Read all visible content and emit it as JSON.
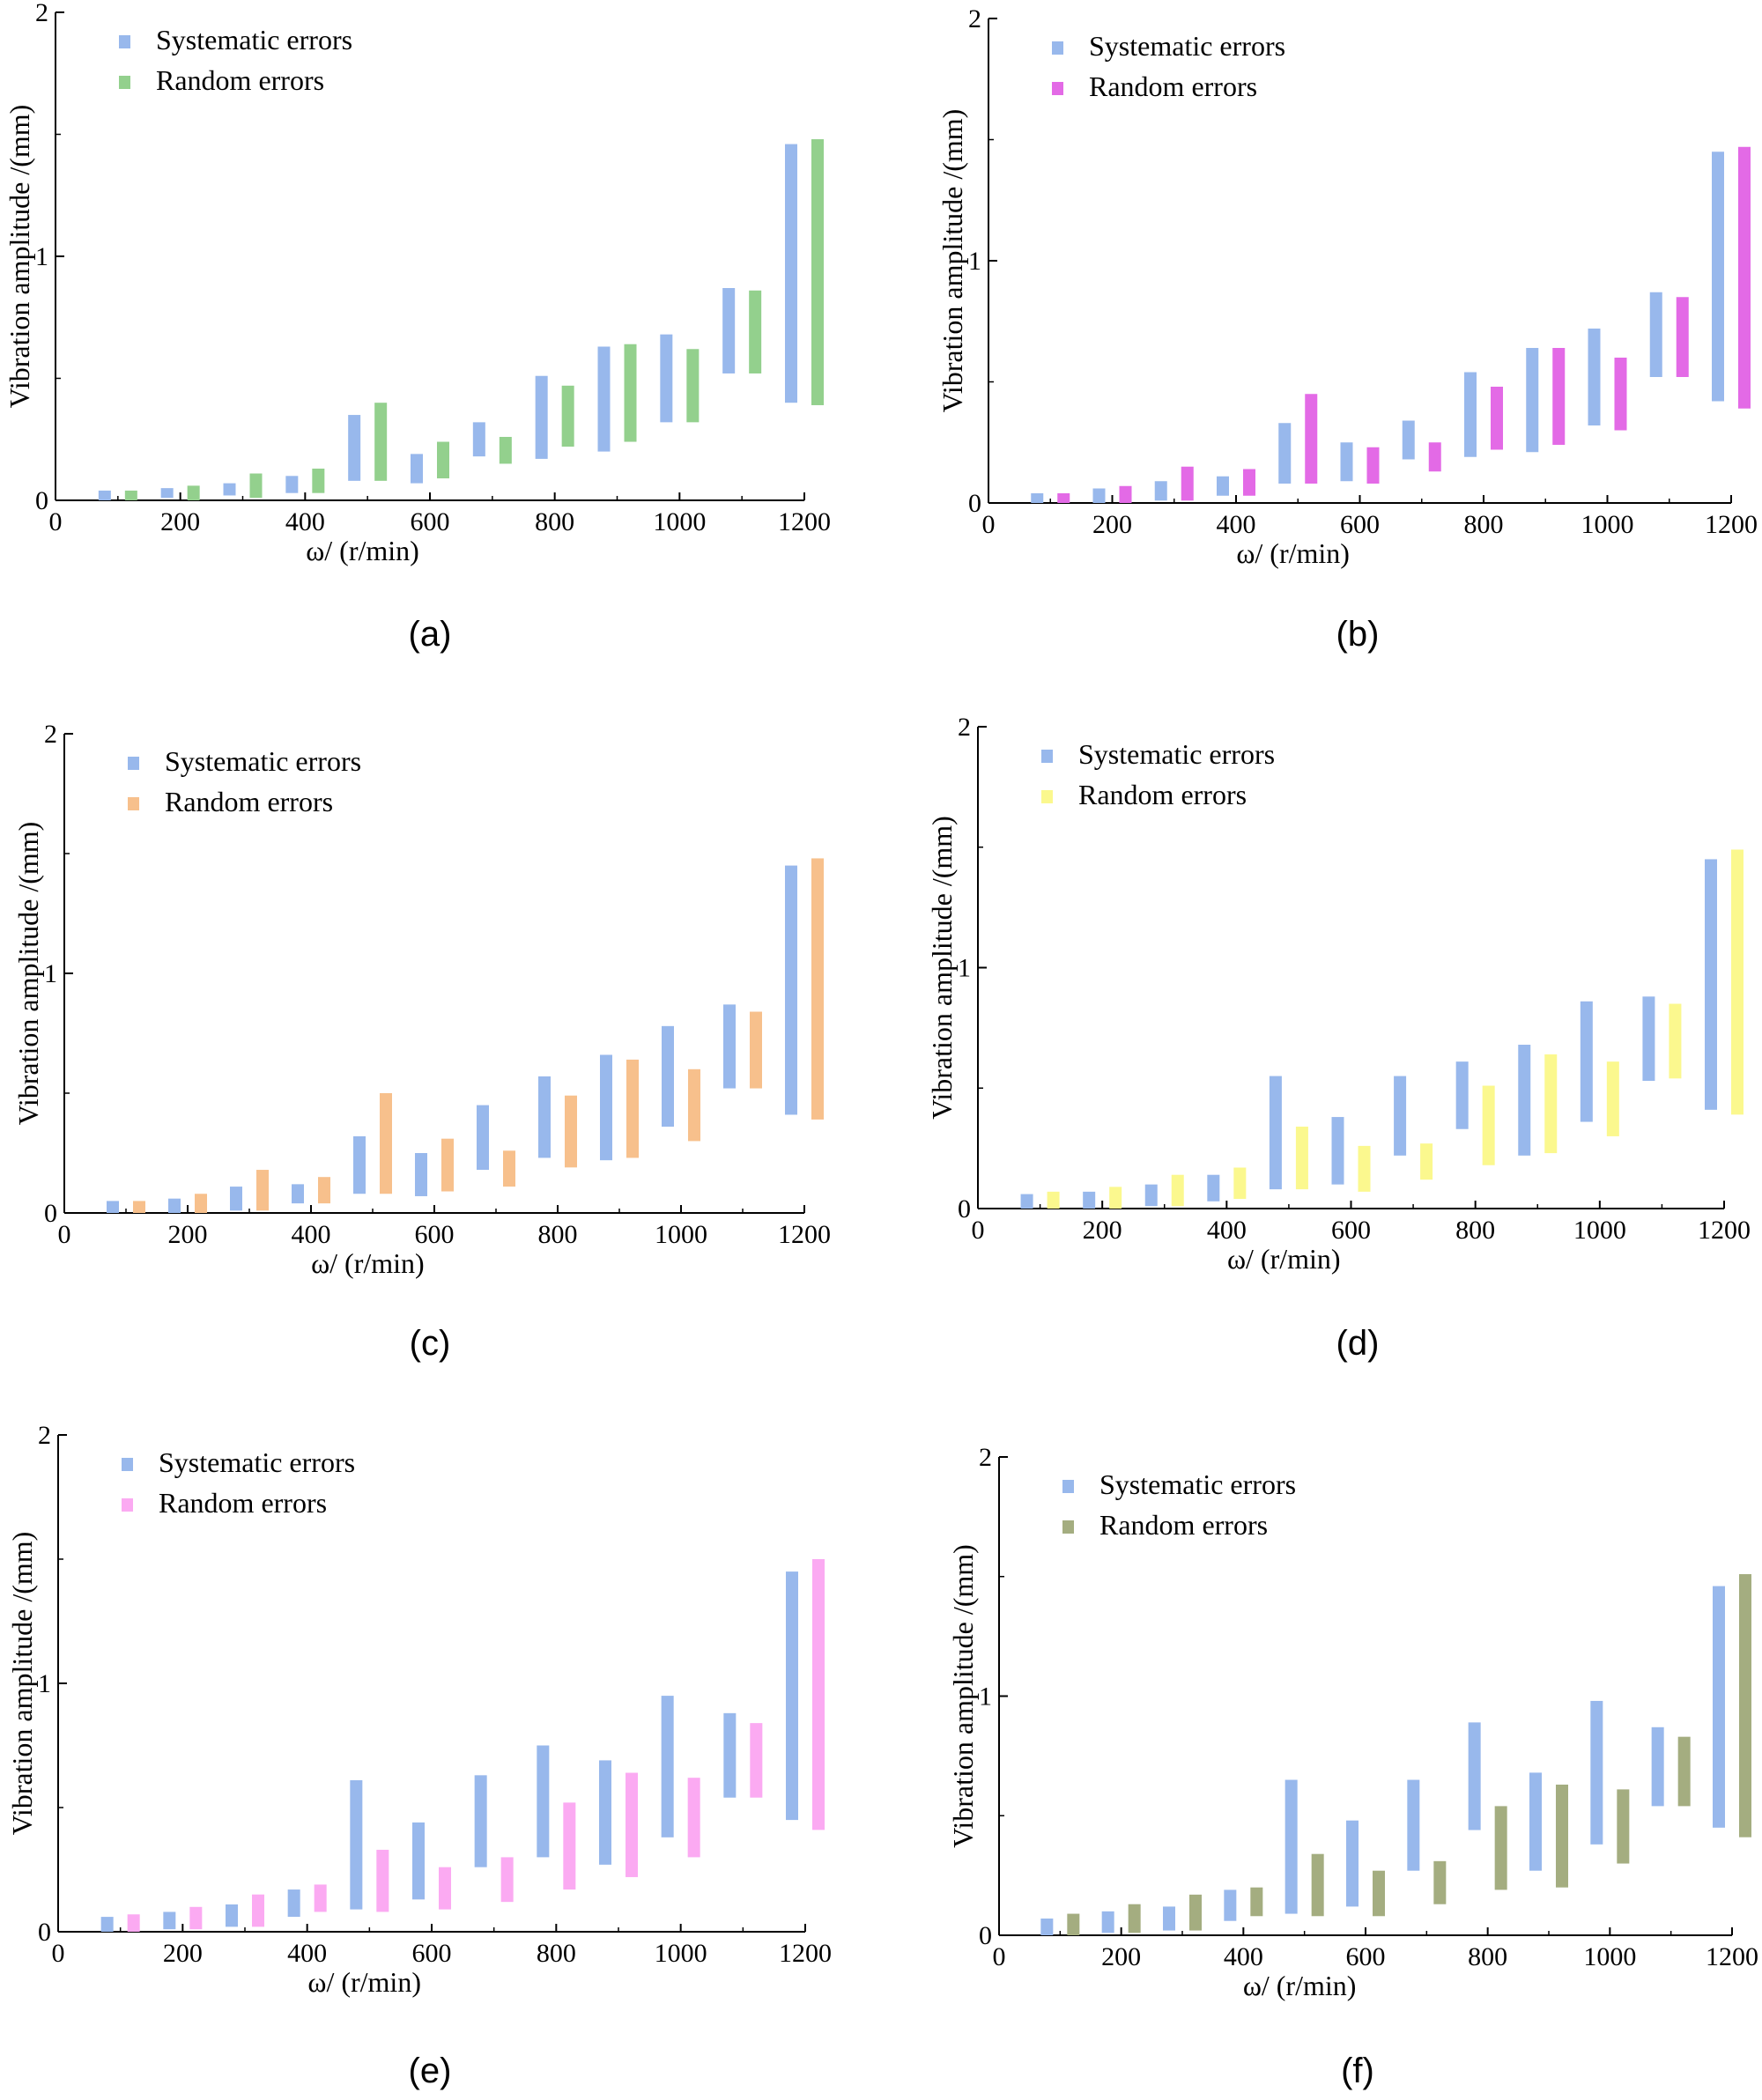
{
  "figure": {
    "colors": {
      "systematic": "#98b8ec",
      "axis": "#000000"
    }
  },
  "chart_data": [
    {
      "id": "a",
      "caption": "(a)",
      "type": "floating-bar",
      "xlabel": "ω/ (r/min)",
      "ylabel": "Vibration amplitude /(mm)",
      "xlim": [
        0,
        1200
      ],
      "ylim": [
        0,
        2
      ],
      "xticks": [
        0,
        200,
        400,
        600,
        800,
        1000,
        1200
      ],
      "yticks": [
        0,
        1,
        2
      ],
      "legend": [
        "Systematic errors",
        "Random errors"
      ],
      "colors": {
        "systematic": "#98b8ec",
        "random": "#93d08d"
      },
      "x": [
        100,
        200,
        300,
        400,
        500,
        600,
        700,
        800,
        900,
        1000,
        1100,
        1200
      ],
      "series": [
        {
          "name": "Systematic errors",
          "ranges": [
            [
              0.0,
              0.04
            ],
            [
              0.01,
              0.05
            ],
            [
              0.02,
              0.07
            ],
            [
              0.03,
              0.1
            ],
            [
              0.08,
              0.35
            ],
            [
              0.07,
              0.19
            ],
            [
              0.18,
              0.32
            ],
            [
              0.17,
              0.51
            ],
            [
              0.2,
              0.63
            ],
            [
              0.32,
              0.68
            ],
            [
              0.52,
              0.87
            ],
            [
              0.4,
              1.46
            ]
          ]
        },
        {
          "name": "Random errors",
          "ranges": [
            [
              0.0,
              0.04
            ],
            [
              0.0,
              0.06
            ],
            [
              0.01,
              0.11
            ],
            [
              0.03,
              0.13
            ],
            [
              0.08,
              0.4
            ],
            [
              0.09,
              0.24
            ],
            [
              0.15,
              0.26
            ],
            [
              0.22,
              0.47
            ],
            [
              0.24,
              0.64
            ],
            [
              0.32,
              0.62
            ],
            [
              0.52,
              0.86
            ],
            [
              0.39,
              1.48
            ]
          ]
        }
      ]
    },
    {
      "id": "b",
      "caption": "(b)",
      "type": "floating-bar",
      "xlabel": "ω/ (r/min)",
      "ylabel": "Vibration amplitude /(mm)",
      "xlim": [
        0,
        1200
      ],
      "ylim": [
        0,
        2
      ],
      "xticks": [
        0,
        200,
        400,
        600,
        800,
        1000,
        1200
      ],
      "yticks": [
        0,
        1,
        2
      ],
      "legend": [
        "Systematic errors",
        "Random errors"
      ],
      "colors": {
        "systematic": "#98b8ec",
        "random": "#e36ae6"
      },
      "x": [
        100,
        200,
        300,
        400,
        500,
        600,
        700,
        800,
        900,
        1000,
        1100,
        1200
      ],
      "series": [
        {
          "name": "Systematic errors",
          "ranges": [
            [
              0.0,
              0.04
            ],
            [
              0.0,
              0.06
            ],
            [
              0.01,
              0.09
            ],
            [
              0.03,
              0.11
            ],
            [
              0.08,
              0.33
            ],
            [
              0.09,
              0.25
            ],
            [
              0.18,
              0.34
            ],
            [
              0.19,
              0.54
            ],
            [
              0.21,
              0.64
            ],
            [
              0.32,
              0.72
            ],
            [
              0.52,
              0.87
            ],
            [
              0.42,
              1.45
            ]
          ]
        },
        {
          "name": "Random errors",
          "ranges": [
            [
              0.0,
              0.04
            ],
            [
              0.0,
              0.07
            ],
            [
              0.01,
              0.15
            ],
            [
              0.03,
              0.14
            ],
            [
              0.08,
              0.45
            ],
            [
              0.08,
              0.23
            ],
            [
              0.13,
              0.25
            ],
            [
              0.22,
              0.48
            ],
            [
              0.24,
              0.64
            ],
            [
              0.3,
              0.6
            ],
            [
              0.52,
              0.85
            ],
            [
              0.39,
              1.47
            ]
          ]
        }
      ]
    },
    {
      "id": "c",
      "caption": "(c)",
      "type": "floating-bar",
      "xlabel": "ω/ (r/min)",
      "ylabel": "Vibration amplitude /(mm)",
      "xlim": [
        0,
        1200
      ],
      "ylim": [
        0,
        2
      ],
      "xticks": [
        0,
        200,
        400,
        600,
        800,
        1000,
        1200
      ],
      "yticks": [
        0,
        1,
        2
      ],
      "legend": [
        "Systematic errors",
        "Random errors"
      ],
      "colors": {
        "systematic": "#98b8ec",
        "random": "#f7c08c"
      },
      "x": [
        100,
        200,
        300,
        400,
        500,
        600,
        700,
        800,
        900,
        1000,
        1100,
        1200
      ],
      "series": [
        {
          "name": "Systematic errors",
          "ranges": [
            [
              0.0,
              0.05
            ],
            [
              0.0,
              0.06
            ],
            [
              0.01,
              0.11
            ],
            [
              0.04,
              0.12
            ],
            [
              0.08,
              0.32
            ],
            [
              0.07,
              0.25
            ],
            [
              0.18,
              0.45
            ],
            [
              0.23,
              0.57
            ],
            [
              0.22,
              0.66
            ],
            [
              0.36,
              0.78
            ],
            [
              0.52,
              0.87
            ],
            [
              0.41,
              1.45
            ]
          ]
        },
        {
          "name": "Random errors",
          "ranges": [
            [
              0.0,
              0.05
            ],
            [
              0.0,
              0.08
            ],
            [
              0.01,
              0.18
            ],
            [
              0.04,
              0.15
            ],
            [
              0.08,
              0.5
            ],
            [
              0.09,
              0.31
            ],
            [
              0.11,
              0.26
            ],
            [
              0.19,
              0.49
            ],
            [
              0.23,
              0.64
            ],
            [
              0.3,
              0.6
            ],
            [
              0.52,
              0.84
            ],
            [
              0.39,
              1.48
            ]
          ]
        }
      ]
    },
    {
      "id": "d",
      "caption": "(d)",
      "type": "floating-bar",
      "xlabel": "ω/ (r/min)",
      "ylabel": "Vibration amplitude /(mm)",
      "xlim": [
        0,
        1200
      ],
      "ylim": [
        0,
        2
      ],
      "xticks": [
        0,
        200,
        400,
        600,
        800,
        1000,
        1200
      ],
      "yticks": [
        0,
        1,
        2
      ],
      "legend": [
        "Systematic errors",
        "Random errors"
      ],
      "colors": {
        "systematic": "#98b8ec",
        "random": "#fbf88e"
      },
      "x": [
        100,
        200,
        300,
        400,
        500,
        600,
        700,
        800,
        900,
        1000,
        1100,
        1200
      ],
      "series": [
        {
          "name": "Systematic errors",
          "ranges": [
            [
              0.0,
              0.06
            ],
            [
              0.0,
              0.07
            ],
            [
              0.01,
              0.1
            ],
            [
              0.03,
              0.14
            ],
            [
              0.08,
              0.55
            ],
            [
              0.1,
              0.38
            ],
            [
              0.22,
              0.55
            ],
            [
              0.33,
              0.61
            ],
            [
              0.22,
              0.68
            ],
            [
              0.36,
              0.86
            ],
            [
              0.53,
              0.88
            ],
            [
              0.41,
              1.45
            ]
          ]
        },
        {
          "name": "Random errors",
          "ranges": [
            [
              0.0,
              0.07
            ],
            [
              0.0,
              0.09
            ],
            [
              0.01,
              0.14
            ],
            [
              0.04,
              0.17
            ],
            [
              0.08,
              0.34
            ],
            [
              0.07,
              0.26
            ],
            [
              0.12,
              0.27
            ],
            [
              0.18,
              0.51
            ],
            [
              0.23,
              0.64
            ],
            [
              0.3,
              0.61
            ],
            [
              0.54,
              0.85
            ],
            [
              0.39,
              1.49
            ]
          ]
        }
      ]
    },
    {
      "id": "e",
      "caption": "(e)",
      "type": "floating-bar",
      "xlabel": "ω/ (r/min)",
      "ylabel": "Vibration amplitude /(mm)",
      "xlim": [
        0,
        1200
      ],
      "ylim": [
        0,
        2
      ],
      "xticks": [
        0,
        200,
        400,
        600,
        800,
        1000,
        1200
      ],
      "yticks": [
        0,
        1,
        2
      ],
      "legend": [
        "Systematic errors",
        "Random errors"
      ],
      "colors": {
        "systematic": "#98b8ec",
        "random": "#fbaaf2"
      },
      "x": [
        100,
        200,
        300,
        400,
        500,
        600,
        700,
        800,
        900,
        1000,
        1100,
        1200
      ],
      "series": [
        {
          "name": "Systematic errors",
          "ranges": [
            [
              0.0,
              0.06
            ],
            [
              0.01,
              0.08
            ],
            [
              0.02,
              0.11
            ],
            [
              0.06,
              0.17
            ],
            [
              0.09,
              0.61
            ],
            [
              0.13,
              0.44
            ],
            [
              0.26,
              0.63
            ],
            [
              0.3,
              0.75
            ],
            [
              0.27,
              0.69
            ],
            [
              0.38,
              0.95
            ],
            [
              0.54,
              0.88
            ],
            [
              0.45,
              1.45
            ]
          ]
        },
        {
          "name": "Random errors",
          "ranges": [
            [
              0.0,
              0.07
            ],
            [
              0.01,
              0.1
            ],
            [
              0.02,
              0.15
            ],
            [
              0.08,
              0.19
            ],
            [
              0.08,
              0.33
            ],
            [
              0.09,
              0.26
            ],
            [
              0.12,
              0.3
            ],
            [
              0.17,
              0.52
            ],
            [
              0.22,
              0.64
            ],
            [
              0.3,
              0.62
            ],
            [
              0.54,
              0.84
            ],
            [
              0.41,
              1.5
            ]
          ]
        }
      ]
    },
    {
      "id": "f",
      "caption": "(f)",
      "type": "floating-bar",
      "xlabel": "ω/ (r/min)",
      "ylabel": "Vibration amplitude /(mm)",
      "xlim": [
        0,
        1200
      ],
      "ylim": [
        0,
        2
      ],
      "xticks": [
        0,
        200,
        400,
        600,
        800,
        1000,
        1200
      ],
      "yticks": [
        0,
        1,
        2
      ],
      "legend": [
        "Systematic errors",
        "Random errors"
      ],
      "colors": {
        "systematic": "#98b8ec",
        "random": "#a4ad80"
      },
      "x": [
        100,
        200,
        300,
        400,
        500,
        600,
        700,
        800,
        900,
        1000,
        1100,
        1200
      ],
      "series": [
        {
          "name": "Systematic errors",
          "ranges": [
            [
              0.0,
              0.07
            ],
            [
              0.01,
              0.1
            ],
            [
              0.02,
              0.12
            ],
            [
              0.06,
              0.19
            ],
            [
              0.09,
              0.65
            ],
            [
              0.12,
              0.48
            ],
            [
              0.27,
              0.65
            ],
            [
              0.44,
              0.89
            ],
            [
              0.27,
              0.68
            ],
            [
              0.38,
              0.98
            ],
            [
              0.54,
              0.87
            ],
            [
              0.45,
              1.46
            ]
          ]
        },
        {
          "name": "Random errors",
          "ranges": [
            [
              0.0,
              0.09
            ],
            [
              0.01,
              0.13
            ],
            [
              0.02,
              0.17
            ],
            [
              0.08,
              0.2
            ],
            [
              0.08,
              0.34
            ],
            [
              0.08,
              0.27
            ],
            [
              0.13,
              0.31
            ],
            [
              0.19,
              0.54
            ],
            [
              0.2,
              0.63
            ],
            [
              0.3,
              0.61
            ],
            [
              0.54,
              0.83
            ],
            [
              0.41,
              1.51
            ]
          ]
        }
      ]
    }
  ]
}
